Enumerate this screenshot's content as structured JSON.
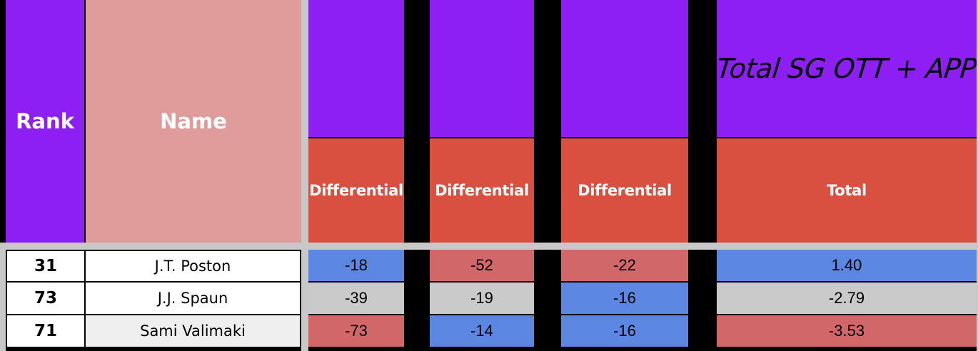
{
  "headers": {
    "rank": "Rank",
    "name": "Name",
    "col1_sub": "Differential",
    "col2_sub": "Differential",
    "col3_sub": "Differential",
    "col4_title": "Total SG OTT + APP",
    "col4_sub": "Total"
  },
  "rows": [
    {
      "rank": "31",
      "name": "J.T. Poston",
      "c1": "-18",
      "c2": "-52",
      "c3": "-22",
      "c4": "1.40",
      "colors": {
        "name": "#ffffff",
        "c1": "#5b87e0",
        "c2": "#d2676a",
        "c3": "#d2676a",
        "c4": "#5b87e0"
      }
    },
    {
      "rank": "73",
      "name": "J.J. Spaun",
      "c1": "-39",
      "c2": "-19",
      "c3": "-16",
      "c4": "-2.79",
      "colors": {
        "name": "#ffffff",
        "c1": "#cacaca",
        "c2": "#cacaca",
        "c3": "#5b87e0",
        "c4": "#cacaca"
      }
    },
    {
      "rank": "71",
      "name": "Sami Valimaki",
      "c1": "-73",
      "c2": "-14",
      "c3": "-16",
      "c4": "-3.53",
      "colors": {
        "name": "#efefef",
        "c1": "#d2676a",
        "c2": "#5b87e0",
        "c3": "#5b87e0",
        "c4": "#d2676a"
      }
    }
  ],
  "colors": {
    "header_purple": "#8e1ff2",
    "name_header": "#e09c9a",
    "sub_header_red": "#d94f40",
    "separator": "#000000"
  }
}
